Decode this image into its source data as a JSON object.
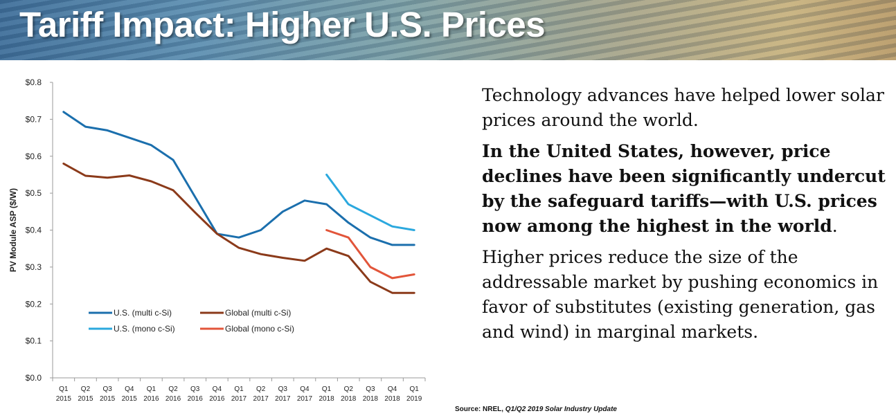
{
  "header": {
    "title": "Tariff Impact: Higher U.S. Prices"
  },
  "text": {
    "p1": "Technology advances have helped lower solar prices around the world.",
    "p2_a": "In the United States, however, price declines have been significantly undercut by the safeguard tariffs—with U.S. prices now among the highest in the world",
    "p2_b": ".",
    "p3": "Higher prices reduce the size of the addressable market by pushing economics in favor of substitutes (existing generation, gas and wind) in marginal markets."
  },
  "source": {
    "prefix": "Source: NREL, ",
    "title": "Q1/Q2 2019 Solar Industry Update"
  },
  "chart_data": {
    "type": "line",
    "ylabel": "PV Module ASP ($/W)",
    "xlabel": "",
    "ylim": [
      0,
      0.8
    ],
    "y_ticks": [
      "$0.0",
      "$0.1",
      "$0.2",
      "$0.3",
      "$0.4",
      "$0.5",
      "$0.6",
      "$0.7",
      "$0.8"
    ],
    "y_tick_values": [
      0,
      0.1,
      0.2,
      0.3,
      0.4,
      0.5,
      0.6,
      0.7,
      0.8
    ],
    "categories": [
      [
        "Q1",
        "2015"
      ],
      [
        "Q2",
        "2015"
      ],
      [
        "Q3",
        "2015"
      ],
      [
        "Q4",
        "2015"
      ],
      [
        "Q1",
        "2016"
      ],
      [
        "Q2",
        "2016"
      ],
      [
        "Q3",
        "2016"
      ],
      [
        "Q4",
        "2016"
      ],
      [
        "Q1",
        "2017"
      ],
      [
        "Q2",
        "2017"
      ],
      [
        "Q3",
        "2017"
      ],
      [
        "Q4",
        "2017"
      ],
      [
        "Q1",
        "2018"
      ],
      [
        "Q2",
        "2018"
      ],
      [
        "Q3",
        "2018"
      ],
      [
        "Q4",
        "2018"
      ],
      [
        "Q1",
        "2019"
      ]
    ],
    "grid": false,
    "legend_position": "lower-left",
    "series": [
      {
        "name": "U.S. (multi c-Si)",
        "color": "#1b6fad",
        "values": [
          0.72,
          0.68,
          0.67,
          0.65,
          0.63,
          0.59,
          0.49,
          0.39,
          0.38,
          0.4,
          0.45,
          0.48,
          0.47,
          0.42,
          0.38,
          0.36,
          0.36
        ]
      },
      {
        "name": "Global (multi c-Si)",
        "color": "#8b3a1a",
        "values": [
          0.58,
          0.547,
          0.542,
          0.548,
          0.532,
          0.508,
          0.448,
          0.39,
          0.352,
          0.335,
          0.325,
          0.317,
          0.35,
          0.33,
          0.26,
          0.23,
          0.23
        ]
      },
      {
        "name": "U.S. (mono c-Si)",
        "color": "#2ba8de",
        "values": [
          null,
          null,
          null,
          null,
          null,
          null,
          null,
          null,
          null,
          null,
          null,
          null,
          0.55,
          0.47,
          0.44,
          0.41,
          0.4
        ]
      },
      {
        "name": "Global (mono c-Si)",
        "color": "#e2553a",
        "values": [
          null,
          null,
          null,
          null,
          null,
          null,
          null,
          null,
          null,
          null,
          null,
          null,
          0.4,
          0.38,
          0.3,
          0.27,
          0.28
        ]
      }
    ]
  }
}
